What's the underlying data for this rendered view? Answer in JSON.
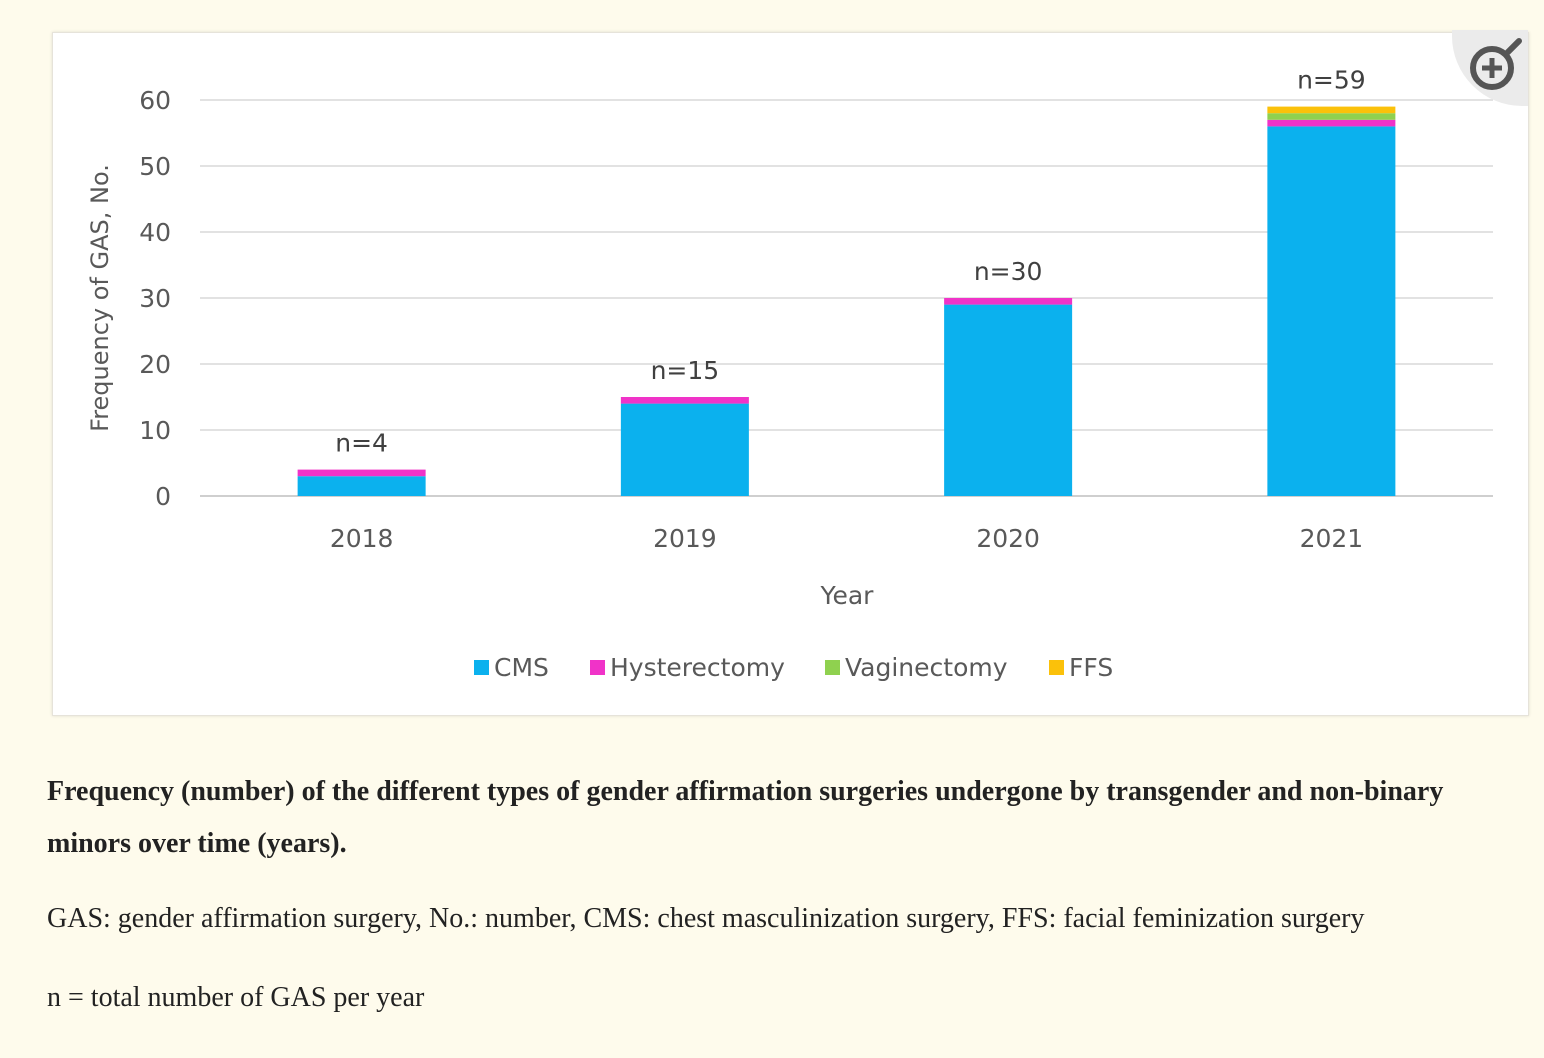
{
  "colors": {
    "page_bg": "#fefbec",
    "cms": "#0bb1ee",
    "hysterectomy": "#f033c8",
    "vaginectomy": "#8fd14f",
    "ffs": "#fbc10a",
    "grid": "#d9d9d9",
    "text": "#595959"
  },
  "zoom_icon": "zoom-in-magnifier-icon",
  "chart_data": {
    "type": "bar",
    "stacked": true,
    "categories": [
      "2018",
      "2019",
      "2020",
      "2021"
    ],
    "series": [
      {
        "name": "CMS",
        "values": [
          3,
          14,
          29,
          56
        ],
        "color": "#0bb1ee"
      },
      {
        "name": "Hysterectomy",
        "values": [
          1,
          1,
          1,
          1
        ],
        "color": "#f033c8"
      },
      {
        "name": "Vaginectomy",
        "values": [
          0,
          0,
          0,
          1
        ],
        "color": "#8fd14f"
      },
      {
        "name": "FFS",
        "values": [
          0,
          0,
          0,
          1
        ],
        "color": "#fbc10a"
      }
    ],
    "totals_labels": [
      "n=4",
      "n=15",
      "n=30",
      "n=59"
    ],
    "xlabel": "Year",
    "ylabel": "Frequency of GAS, No.",
    "ylim": [
      0,
      60
    ],
    "yticks": [
      0,
      10,
      20,
      30,
      40,
      50,
      60
    ],
    "grid": true,
    "legend_position": "bottom"
  },
  "caption": {
    "title": "Frequency (number) of the different types of gender affirmation surgeries undergone by transgender and non-binary minors over time (years).",
    "abbreviations": "GAS: gender affirmation surgery, No.: number, CMS: chest masculinization surgery, FFS: facial feminization surgery",
    "n_note": "n = total number of GAS per year"
  }
}
